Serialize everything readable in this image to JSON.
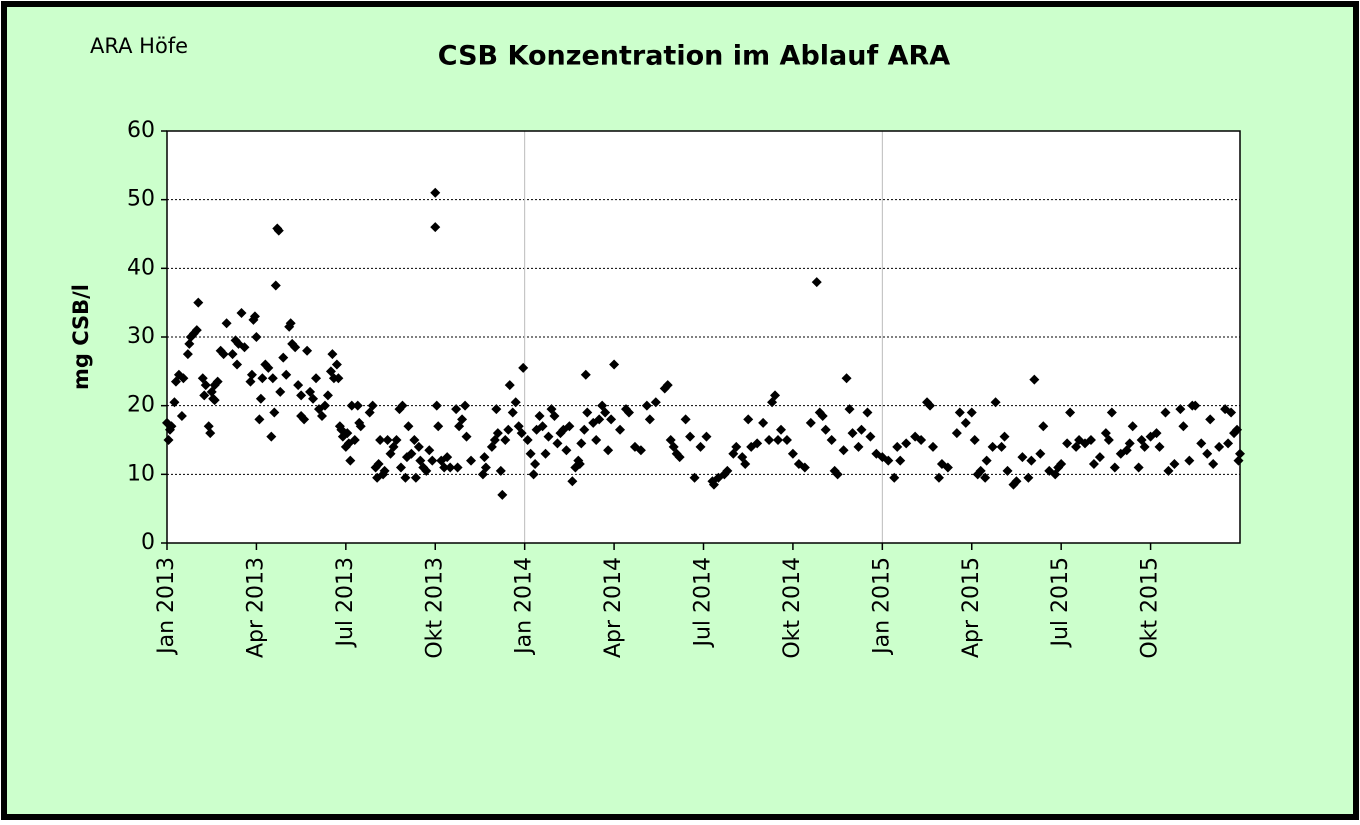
{
  "chart_data": {
    "type": "scatter",
    "corner_label": "ARA Höfe",
    "title": "CSB Konzentration im Ablauf ARA",
    "y_label": "mg CSB/l",
    "color": "#000000",
    "xlim": [
      0,
      36
    ],
    "xticks": [
      {
        "value": 0,
        "label": "Jan 2013"
      },
      {
        "value": 3,
        "label": "Apr 2013"
      },
      {
        "value": 6,
        "label": "Jul 2013"
      },
      {
        "value": 9,
        "label": "Okt 2013"
      },
      {
        "value": 12,
        "label": "Jan 2014"
      },
      {
        "value": 15,
        "label": "Apr 2014"
      },
      {
        "value": 18,
        "label": "Jul 2014"
      },
      {
        "value": 21,
        "label": "Okt 2014"
      },
      {
        "value": 24,
        "label": "Jan 2015"
      },
      {
        "value": 27,
        "label": "Apr 2015"
      },
      {
        "value": 30,
        "label": "Jul 2015"
      },
      {
        "value": 33,
        "label": "Okt 2015"
      }
    ],
    "ylim": [
      0,
      60
    ],
    "yticks": [
      0,
      10,
      20,
      30,
      40,
      50,
      60
    ],
    "grid": true,
    "x": [
      0.0,
      0.05,
      0.1,
      0.15,
      0.25,
      0.3,
      0.4,
      0.5,
      0.55,
      0.7,
      0.75,
      0.8,
      0.9,
      1.0,
      1.05,
      1.2,
      1.25,
      1.3,
      1.4,
      1.45,
      1.5,
      1.55,
      1.6,
      1.7,
      1.6,
      1.8,
      1.9,
      2.0,
      2.2,
      2.3,
      2.35,
      2.4,
      2.5,
      2.6,
      2.8,
      2.85,
      2.9,
      2.95,
      3.0,
      3.1,
      3.15,
      3.2,
      3.3,
      3.4,
      3.5,
      3.55,
      3.6,
      3.65,
      3.7,
      3.75,
      3.8,
      3.9,
      4.0,
      4.1,
      4.15,
      4.2,
      4.3,
      4.4,
      4.5,
      4.5,
      4.6,
      4.7,
      4.8,
      4.9,
      5.0,
      5.1,
      5.2,
      5.3,
      5.4,
      5.5,
      5.55,
      5.6,
      5.7,
      5.75,
      5.8,
      5.85,
      5.9,
      6.0,
      6.05,
      6.1,
      6.15,
      6.2,
      6.3,
      6.4,
      6.45,
      6.5,
      6.8,
      6.9,
      7.0,
      7.05,
      7.1,
      7.15,
      7.25,
      7.3,
      7.4,
      7.5,
      7.6,
      7.7,
      7.8,
      7.9,
      7.85,
      8.0,
      8.05,
      8.1,
      8.2,
      8.3,
      8.35,
      8.45,
      8.5,
      8.6,
      8.7,
      8.8,
      8.9,
      9.0,
      9.0,
      9.05,
      9.1,
      9.2,
      9.3,
      9.4,
      9.5,
      9.7,
      9.75,
      9.8,
      9.9,
      10.0,
      10.05,
      10.2,
      10.6,
      10.65,
      10.7,
      10.9,
      11.0,
      11.05,
      11.1,
      11.2,
      11.25,
      11.35,
      11.45,
      11.5,
      11.6,
      11.7,
      11.8,
      11.9,
      11.95,
      12.1,
      12.2,
      12.3,
      12.35,
      12.4,
      12.5,
      12.6,
      12.7,
      12.8,
      12.9,
      13.0,
      13.1,
      13.2,
      13.3,
      13.4,
      13.5,
      13.6,
      13.7,
      13.8,
      13.85,
      13.9,
      14.0,
      14.05,
      14.1,
      14.3,
      14.4,
      14.5,
      14.6,
      14.7,
      14.8,
      14.9,
      15.0,
      15.2,
      15.4,
      15.5,
      15.7,
      15.9,
      16.1,
      16.2,
      16.4,
      16.7,
      16.8,
      16.9,
      17.0,
      17.1,
      17.2,
      17.4,
      17.55,
      17.7,
      17.9,
      18.1,
      18.3,
      18.35,
      18.5,
      18.7,
      18.8,
      19.0,
      19.1,
      19.3,
      19.4,
      19.5,
      19.6,
      19.8,
      20.0,
      20.2,
      20.3,
      20.4,
      20.5,
      20.6,
      20.8,
      21.0,
      21.2,
      21.4,
      21.6,
      21.8,
      21.9,
      22.0,
      22.1,
      22.3,
      22.4,
      22.5,
      22.7,
      22.8,
      22.9,
      23.0,
      23.2,
      23.3,
      23.5,
      23.6,
      23.8,
      24.0,
      24.2,
      24.4,
      24.5,
      24.6,
      24.8,
      25.1,
      25.3,
      25.5,
      25.6,
      25.7,
      25.9,
      26.0,
      26.2,
      26.5,
      26.6,
      26.8,
      27.0,
      27.1,
      27.2,
      27.3,
      27.45,
      27.5,
      27.7,
      27.8,
      28.0,
      28.1,
      28.2,
      28.4,
      28.5,
      28.7,
      28.9,
      29.0,
      29.1,
      29.3,
      29.4,
      29.6,
      29.8,
      29.9,
      30.0,
      30.2,
      30.3,
      30.5,
      30.6,
      30.8,
      31.0,
      31.1,
      31.3,
      31.5,
      31.6,
      31.7,
      31.8,
      32.0,
      32.2,
      32.3,
      32.4,
      32.6,
      32.7,
      32.8,
      33.0,
      33.2,
      33.3,
      33.5,
      33.6,
      33.8,
      34.0,
      34.1,
      34.3,
      34.4,
      34.5,
      34.7,
      34.9,
      35.0,
      35.1,
      35.3,
      35.5,
      35.6,
      35.7,
      35.8,
      35.9,
      36.0,
      35.95
    ],
    "values": [
      17.5,
      15,
      16.5,
      17,
      20.5,
      23.5,
      24.5,
      18.5,
      24,
      27.5,
      29,
      30,
      30.5,
      31,
      35,
      24,
      21.5,
      23,
      17,
      16,
      22,
      21,
      23,
      23.5,
      20.8,
      28,
      27.5,
      32,
      27.5,
      29.5,
      26,
      29,
      33.5,
      28.5,
      23.5,
      24.5,
      32.5,
      33,
      30,
      18,
      21,
      24,
      26,
      25.5,
      15.5,
      24,
      19,
      37.5,
      45.8,
      45.5,
      22,
      27,
      24.5,
      31.5,
      32,
      29,
      28.5,
      23,
      21.5,
      18.5,
      18,
      28,
      22,
      21,
      24,
      19.5,
      18.5,
      20,
      21.5,
      25,
      27.5,
      24,
      26,
      24,
      17,
      16.5,
      15.5,
      14,
      16,
      14.5,
      12,
      20,
      15,
      20,
      17.5,
      17,
      19,
      20,
      11,
      9.5,
      11.5,
      15,
      10,
      10.5,
      15,
      13,
      14,
      15,
      19.5,
      20,
      11,
      9.5,
      12.5,
      17,
      13,
      15,
      9.5,
      14,
      12,
      11,
      10.5,
      13.5,
      12,
      51,
      46,
      20,
      17,
      12,
      11,
      12.5,
      11,
      19.5,
      11,
      17,
      18,
      20,
      15.5,
      12,
      10,
      12.5,
      11,
      14,
      15,
      19.5,
      16,
      10.5,
      7,
      15,
      16.5,
      23,
      19,
      20.5,
      17,
      16,
      25.5,
      15,
      13,
      10,
      11.5,
      16.5,
      18.5,
      17,
      13,
      15.5,
      19.5,
      18.5,
      14.5,
      16,
      16.5,
      13.5,
      17,
      9,
      11,
      12,
      11.5,
      14.5,
      16.5,
      24.5,
      19,
      17.5,
      15,
      18,
      20,
      19,
      13.5,
      18,
      26,
      16.5,
      19.5,
      19,
      14,
      13.5,
      20,
      18,
      20.5,
      22.5,
      23,
      15,
      14,
      13,
      12.5,
      18,
      15.5,
      9.5,
      14,
      15.5,
      9,
      8.5,
      9.5,
      10,
      10.5,
      13,
      14,
      12.5,
      11.5,
      18,
      14,
      14.5,
      17.5,
      15,
      20.5,
      21.5,
      15,
      16.5,
      15,
      13,
      11.5,
      11,
      17.5,
      38,
      19,
      18.5,
      16.5,
      15,
      10.5,
      10,
      13.5,
      24,
      19.5,
      16,
      14,
      16.5,
      19,
      15.5,
      13,
      12.5,
      12,
      9.5,
      14,
      12,
      14.5,
      15.5,
      15,
      20.5,
      20,
      14,
      9.5,
      11.5,
      11,
      16,
      19,
      17.5,
      19,
      15,
      10,
      10.5,
      9.5,
      12,
      14,
      20.5,
      14,
      15.5,
      10.5,
      8.5,
      9,
      12.5,
      9.5,
      12,
      23.8,
      13,
      17,
      10.5,
      10,
      11,
      11.5,
      14.5,
      19,
      14,
      15,
      14.5,
      15,
      11.5,
      12.5,
      16,
      15,
      19,
      11,
      13,
      13.5,
      14.5,
      17,
      11,
      15,
      14,
      15.5,
      16,
      14,
      19,
      10.5,
      11.5,
      19.5,
      17,
      12,
      20,
      20,
      14.5,
      13,
      18,
      11.5,
      14,
      19.5,
      14.5,
      19,
      16,
      16.5,
      13,
      12
    ]
  }
}
